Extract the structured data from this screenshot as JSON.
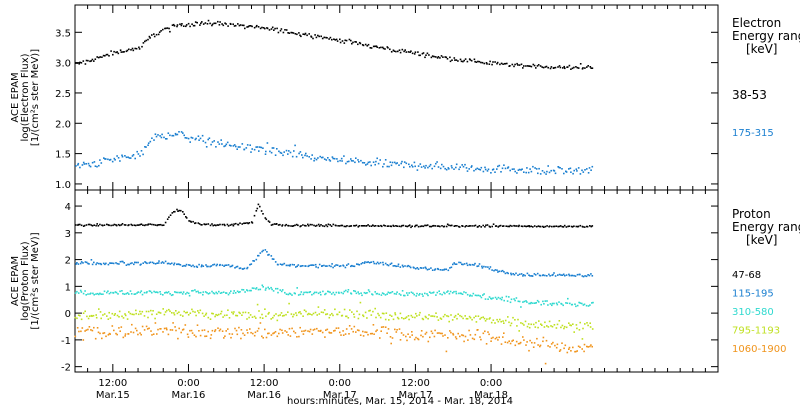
{
  "chart_data": [
    {
      "type": "scatter",
      "panel": "electron",
      "ylabel_lines": [
        "ACE EPAM",
        "log(Electron Flux)",
        "[1/(cm²s ster MeV)]"
      ],
      "ylim": [
        0.9,
        3.95
      ],
      "yticks": [
        1.0,
        1.5,
        2.0,
        2.5,
        3.0,
        3.5
      ],
      "ytick_labels": [
        "1.0",
        "1.5",
        "2.0",
        "2.5",
        "3.0",
        "3.5"
      ],
      "legend_title": [
        "Electron",
        "Energy ranges",
        "[keV]"
      ],
      "series": [
        {
          "name": "38-53",
          "color": "#000000",
          "x": [
            0,
            4,
            8,
            12,
            16,
            18,
            20,
            22,
            24,
            26,
            28,
            30,
            32,
            36,
            40,
            44,
            48,
            52,
            56,
            60,
            64,
            68,
            72,
            76,
            80,
            82
          ],
          "y": [
            2.97,
            2.95,
            3.03,
            3.18,
            3.25,
            3.45,
            3.56,
            3.62,
            3.65,
            3.66,
            3.66,
            3.65,
            3.62,
            3.58,
            3.52,
            3.45,
            3.38,
            3.3,
            3.23,
            3.17,
            3.1,
            3.05,
            3.0,
            2.97,
            2.95,
            2.93
          ],
          "noise": 0.03,
          "markers": 340
        },
        {
          "name": "175-315",
          "color": "#1a7fd0",
          "x": [
            0,
            4,
            8,
            12,
            16,
            18,
            20,
            22,
            24,
            28,
            32,
            36,
            40,
            44,
            48,
            52,
            56,
            60,
            64,
            68,
            72,
            76,
            80,
            82
          ],
          "y": [
            1.3,
            1.28,
            1.33,
            1.42,
            1.5,
            1.75,
            1.82,
            1.83,
            1.78,
            1.7,
            1.62,
            1.57,
            1.5,
            1.45,
            1.4,
            1.37,
            1.33,
            1.32,
            1.3,
            1.28,
            1.27,
            1.25,
            1.24,
            1.23
          ],
          "noise": 0.06,
          "markers": 340
        }
      ]
    },
    {
      "type": "scatter",
      "panel": "proton",
      "ylabel_lines": [
        "ACE EPAM",
        "log(Proton Flux)",
        "[1/(cm²s ster MeV)]"
      ],
      "ylim": [
        -2.2,
        4.6
      ],
      "yticks": [
        -2,
        -1,
        0,
        1,
        2,
        3,
        4
      ],
      "ytick_labels": [
        "-2",
        "-1",
        "0",
        "1",
        "2",
        "3",
        "4"
      ],
      "legend_title": [
        "Proton",
        "Energy ranges",
        "[keV]"
      ],
      "series": [
        {
          "name": "47-68",
          "color": "#000000",
          "x": [
            0,
            10,
            20,
            21,
            22,
            23,
            24,
            26,
            30,
            34,
            35,
            36,
            37,
            40,
            50,
            60,
            70,
            82
          ],
          "y": [
            3.3,
            3.32,
            3.33,
            3.7,
            3.9,
            3.8,
            3.45,
            3.35,
            3.32,
            3.4,
            4.1,
            3.6,
            3.35,
            3.3,
            3.3,
            3.28,
            3.28,
            3.27
          ],
          "noise": 0.03,
          "markers": 340
        },
        {
          "name": "115-195",
          "color": "#1a7fd0",
          "x": [
            0,
            10,
            20,
            22,
            24,
            30,
            33,
            36,
            38,
            40,
            50,
            52,
            60,
            62,
            65,
            66,
            70,
            74,
            78,
            82
          ],
          "y": [
            1.95,
            1.88,
            1.92,
            1.85,
            1.8,
            1.82,
            1.7,
            2.4,
            1.85,
            1.8,
            1.8,
            1.95,
            1.72,
            1.7,
            1.62,
            1.9,
            1.8,
            1.55,
            1.45,
            1.45
          ],
          "noise": 0.05,
          "markers": 340
        },
        {
          "name": "310-580",
          "color": "#2fd9cf",
          "x": [
            0,
            10,
            20,
            30,
            36,
            40,
            50,
            56,
            60,
            66,
            70,
            74,
            78,
            82
          ],
          "y": [
            0.85,
            0.78,
            0.8,
            0.78,
            0.95,
            0.75,
            0.8,
            0.78,
            0.72,
            0.8,
            0.65,
            0.55,
            0.45,
            0.38
          ],
          "noise": 0.08,
          "markers": 340
        },
        {
          "name": "795-1193",
          "color": "#bfe020",
          "x": [
            0,
            10,
            20,
            30,
            40,
            50,
            60,
            70,
            76,
            82
          ],
          "y": [
            0.02,
            -0.05,
            0.05,
            -0.05,
            -0.02,
            0.02,
            -0.1,
            -0.15,
            -0.3,
            -0.45
          ],
          "noise": 0.16,
          "markers": 340
        },
        {
          "name": "1060-1900",
          "color": "#f0941c",
          "x": [
            0,
            10,
            20,
            30,
            40,
            50,
            60,
            70,
            76,
            82
          ],
          "y": [
            -0.65,
            -0.7,
            -0.62,
            -0.7,
            -0.68,
            -0.65,
            -0.75,
            -0.85,
            -1.0,
            -1.25
          ],
          "noise": 0.22,
          "markers": 340
        }
      ]
    }
  ],
  "time_axis": {
    "unit": "hours from Mar.15 00:00",
    "range": [
      6,
      108
    ],
    "ticks": [
      {
        "x": 12,
        "time": "12:00",
        "date": "Mar.15"
      },
      {
        "x": 24,
        "time": "0:00",
        "date": "Mar.16"
      },
      {
        "x": 36,
        "time": "12:00",
        "date": "Mar.16"
      },
      {
        "x": 48,
        "time": "0:00",
        "date": "Mar.17"
      },
      {
        "x": 60,
        "time": "12:00",
        "date": "Mar.17"
      },
      {
        "x": 72,
        "time": "0:00",
        "date": "Mar.18"
      }
    ],
    "minor_step": 2,
    "label": "hours:minutes, Mar. 15, 2014 - Mar. 18, 2014",
    "data_start": 6.0,
    "data_end": 88.0
  }
}
